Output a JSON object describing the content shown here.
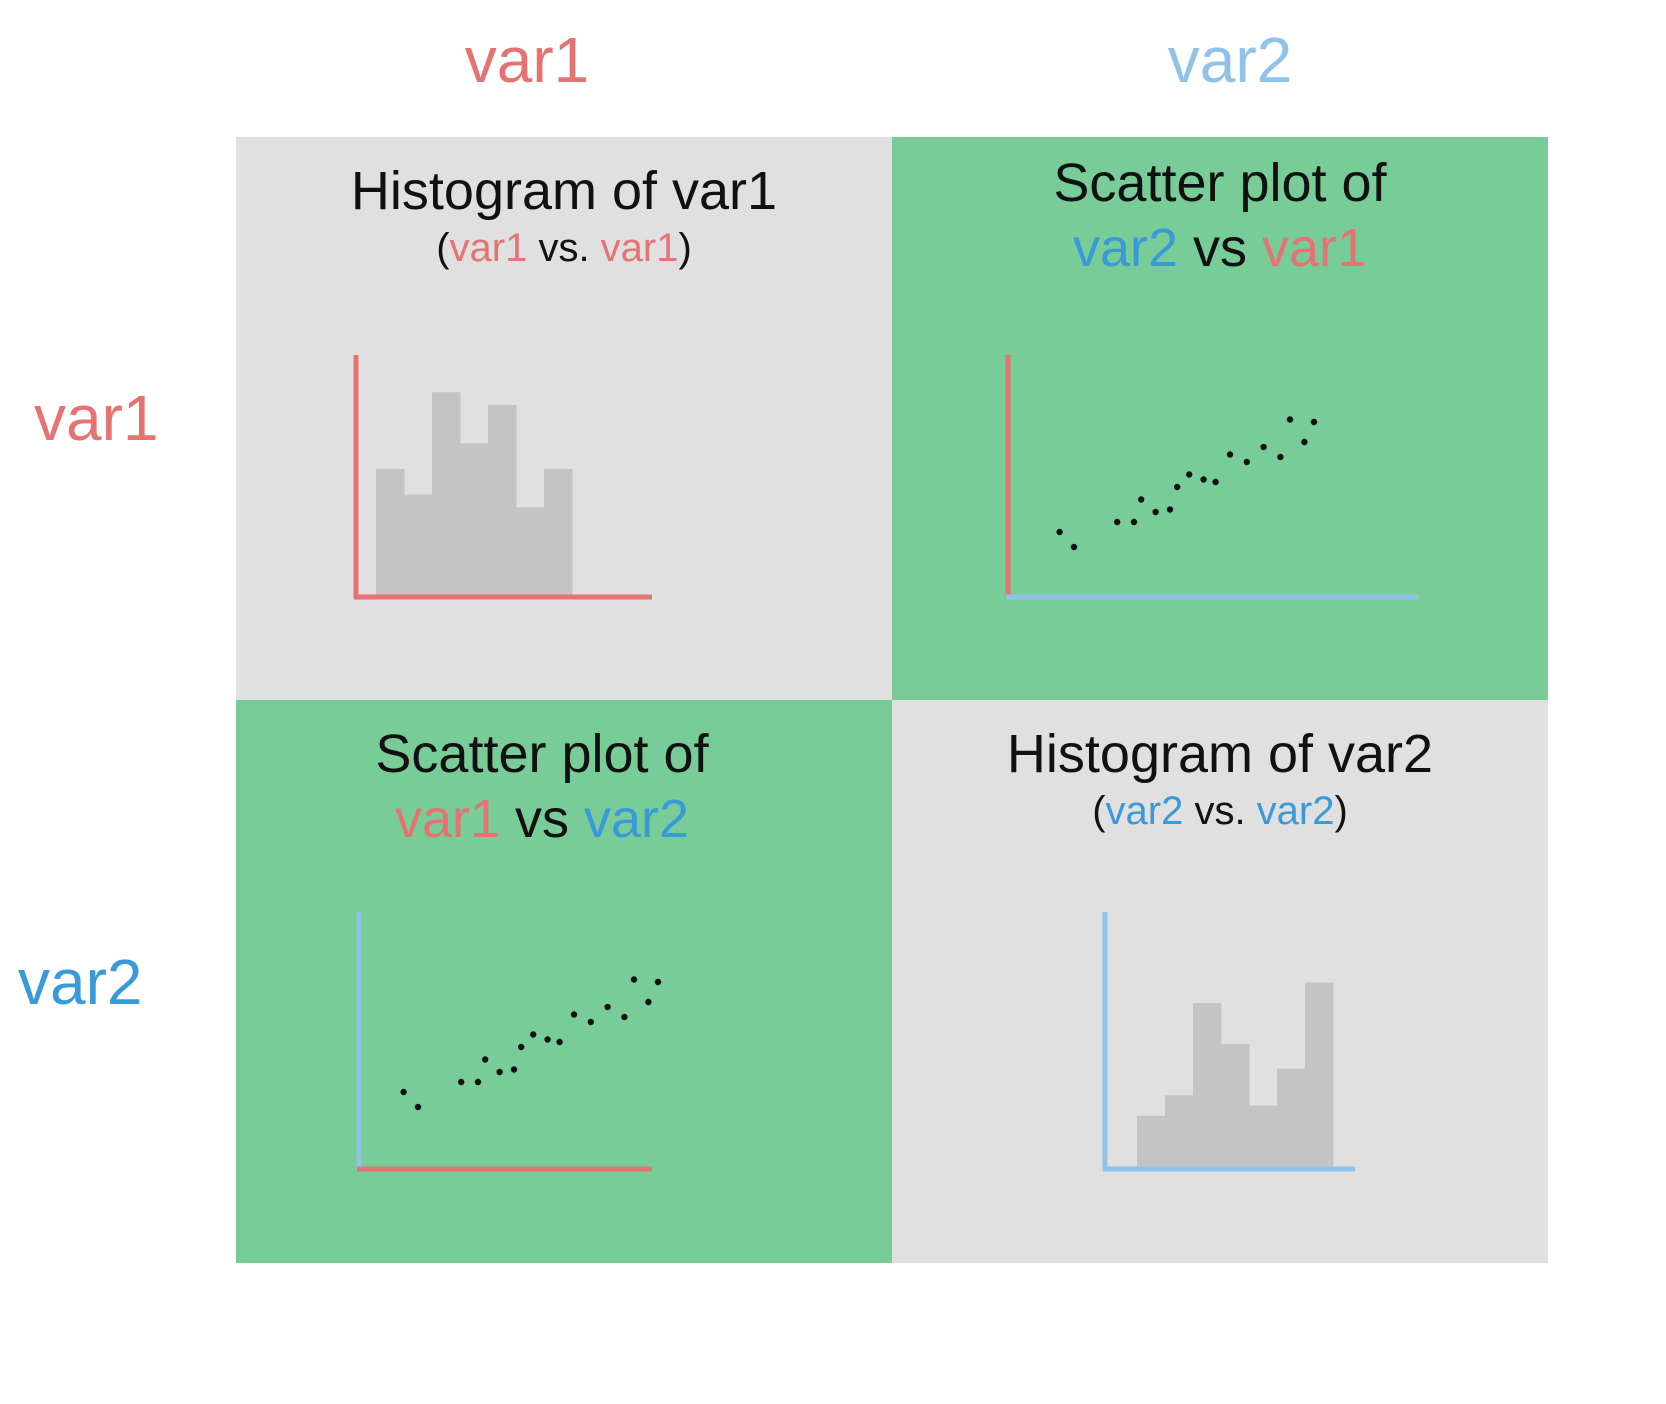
{
  "colors": {
    "var1": "#e57373",
    "var2_header": "#90c2ea",
    "var2_text": "#3a9ad9",
    "var2_axis": "#90c2ea",
    "diagonal_cell": "#e0e0e0",
    "offdiagonal_cell": "#77cc98",
    "histogram_bar": "#c4c4c4",
    "scatter_point": "#111111",
    "title_text": "#111111"
  },
  "column_labels": [
    "var1",
    "var2"
  ],
  "row_labels": [
    "var1",
    "var2"
  ],
  "cells": {
    "r1c1": {
      "title_line1": "Histogram of var1",
      "paren_open": "(",
      "term1": "var1",
      "connector": " vs. ",
      "term2": "var1",
      "paren_close": ")"
    },
    "r1c2": {
      "title_line1": "Scatter plot of",
      "term1": "var2",
      "connector": " vs ",
      "term2": "var1"
    },
    "r2c1": {
      "title_line1": "Scatter plot of",
      "term1": "var1",
      "connector": " vs ",
      "term2": "var2"
    },
    "r2c2": {
      "title_line1": "Histogram of var2",
      "paren_open": "(",
      "term1": "var2",
      "connector": " vs. ",
      "term2": "var2",
      "paren_close": ")"
    }
  },
  "chart_data": [
    {
      "type": "bar",
      "cell": "r1c1",
      "values": [
        5.0,
        4.0,
        8.0,
        6.0,
        7.5,
        3.5,
        5.0
      ]
    },
    {
      "type": "scatter",
      "cell": "r1c2",
      "x": [
        2.4,
        3.0,
        4.8,
        5.5,
        5.8,
        6.4,
        7.0,
        7.3,
        7.8,
        8.4,
        8.9,
        9.5,
        10.2,
        10.9,
        11.6,
        12.0,
        12.6,
        13.0
      ],
      "y": [
        2.2,
        1.6,
        2.6,
        2.6,
        3.5,
        3.0,
        3.1,
        4.0,
        4.5,
        4.3,
        4.2,
        5.3,
        5.0,
        5.6,
        5.2,
        6.7,
        5.8,
        6.6
      ]
    },
    {
      "type": "scatter",
      "cell": "r2c1",
      "x": [
        2.4,
        3.0,
        4.8,
        5.5,
        5.8,
        6.4,
        7.0,
        7.3,
        7.8,
        8.4,
        8.9,
        9.5,
        10.2,
        10.9,
        11.6,
        12.0,
        12.6,
        13.0
      ],
      "y": [
        2.2,
        1.6,
        2.6,
        2.6,
        3.5,
        3.0,
        3.1,
        4.0,
        4.5,
        4.3,
        4.2,
        5.3,
        5.0,
        5.6,
        5.2,
        6.7,
        5.8,
        6.6
      ]
    },
    {
      "type": "bar",
      "cell": "r2c2",
      "values": [
        2.5,
        3.5,
        8.0,
        6.0,
        3.0,
        4.8,
        9.0
      ]
    }
  ]
}
